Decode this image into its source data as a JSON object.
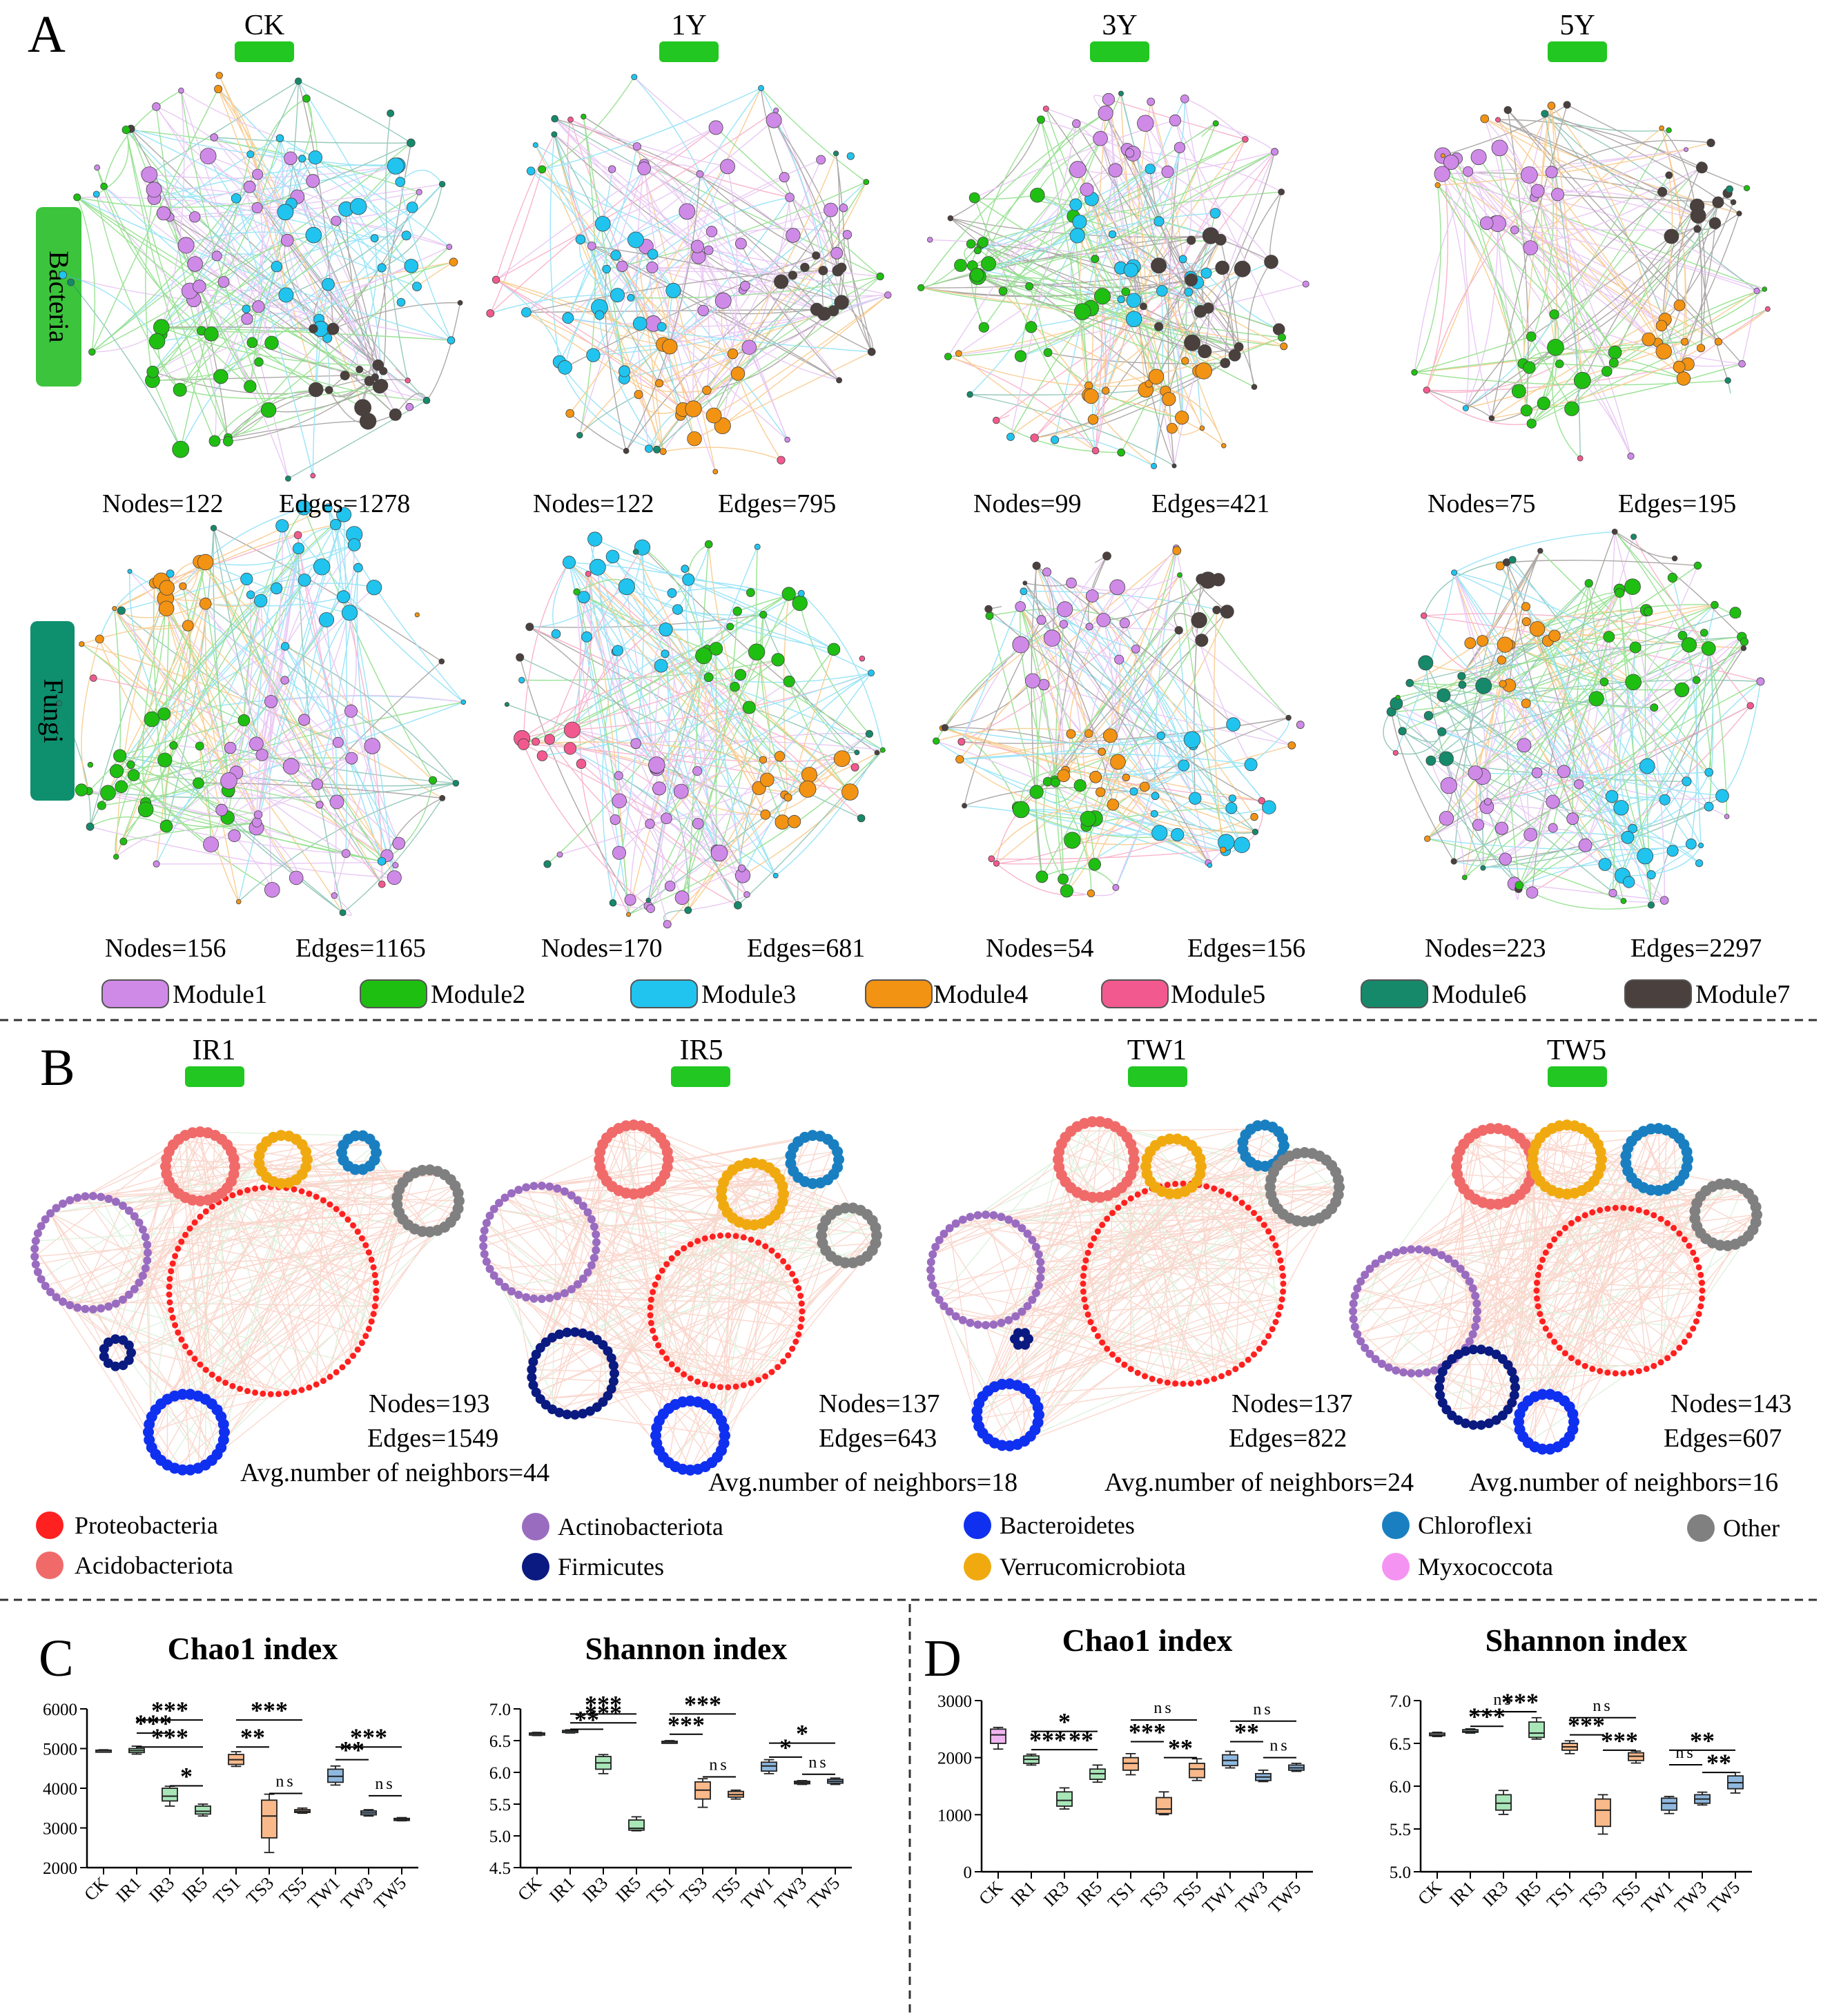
{
  "figure": {
    "panel_labels": [
      "A",
      "B",
      "C",
      "D"
    ],
    "colors": {
      "green_tab": "#22c722",
      "teal_tab": "#0e8f6e",
      "module1": "#cf8ae8",
      "module2": "#1fbf12",
      "module3": "#20c4ef",
      "module4": "#f39313",
      "module5": "#f25a8f",
      "module6": "#16896b",
      "module7": "#4a403d",
      "edge_pos": "#f2896c",
      "edge_neg": "#9ed99e",
      "box_green": "#a8e6b8",
      "box_orange": "#f9b98a",
      "box_blue": "#8fb8df",
      "box_pink": "#efb5f0",
      "box_gray": "#d6d6d6"
    }
  },
  "panel_a": {
    "columns": [
      "CK",
      "1Y",
      "3Y",
      "5Y"
    ],
    "rows": [
      "Bacteria",
      "Fungi"
    ],
    "bacteria_stats": [
      {
        "nodes": "Nodes=122",
        "edges": "Edges=1278"
      },
      {
        "nodes": "Nodes=122",
        "edges": "Edges=795"
      },
      {
        "nodes": "Nodes=99",
        "edges": "Edges=421"
      },
      {
        "nodes": "Nodes=75",
        "edges": "Edges=195"
      }
    ],
    "fungi_stats": [
      {
        "nodes": "Nodes=156",
        "edges": "Edges=1165"
      },
      {
        "nodes": "Nodes=170",
        "edges": "Edges=681"
      },
      {
        "nodes": "Nodes=54",
        "edges": "Edges=156"
      },
      {
        "nodes": "Nodes=223",
        "edges": "Edges=2297"
      }
    ],
    "legend": [
      "Module1",
      "Module2",
      "Module3",
      "Module4",
      "Module5",
      "Module6",
      "Module7"
    ]
  },
  "panel_b": {
    "columns": [
      "IR1",
      "IR5",
      "TW1",
      "TW5"
    ],
    "stats": [
      {
        "nodes": "Nodes=193",
        "edges": "Edges=1549",
        "avg": "Avg.number of neighbors=44"
      },
      {
        "nodes": "Nodes=137",
        "edges": "Edges=643",
        "avg": "Avg.number of neighbors=18"
      },
      {
        "nodes": "Nodes=137",
        "edges": "Edges=822",
        "avg": "Avg.number of neighbors=24"
      },
      {
        "nodes": "Nodes=143",
        "edges": "Edges=607",
        "avg": "Avg.number of neighbors=16"
      }
    ],
    "legend": [
      {
        "label": "Proteobacteria",
        "color": "#ff2020"
      },
      {
        "label": "Acidobacteriota",
        "color": "#f06a6a"
      },
      {
        "label": "Actinobacteriota",
        "color": "#9a6cc0"
      },
      {
        "label": "Firmicutes",
        "color": "#0a1a80"
      },
      {
        "label": "Bacteroidetes",
        "color": "#1030f0"
      },
      {
        "label": "Verrucomicrobiota",
        "color": "#f0aa10"
      },
      {
        "label": "Chloroflexi",
        "color": "#1a7fc0"
      },
      {
        "label": "Myxococcota",
        "color": "#f593f2"
      },
      {
        "label": "Other",
        "color": "#808080"
      }
    ]
  },
  "chart_data": [
    {
      "type": "box",
      "panel": "C",
      "title": "Chao1 index",
      "categories": [
        "CK",
        "IR1",
        "IR3",
        "IR5",
        "TS1",
        "TS3",
        "TS5",
        "TW1",
        "TW3",
        "TW5"
      ],
      "ylim": [
        2000,
        6000
      ],
      "yticks": [
        "2000",
        "3000",
        "4000",
        "5000",
        "6000"
      ],
      "boxes": [
        {
          "min": 4920,
          "q1": 4930,
          "median": 4945,
          "q3": 4960,
          "max": 4970
        },
        {
          "min": 4860,
          "q1": 4900,
          "median": 4950,
          "q3": 5000,
          "max": 5060
        },
        {
          "min": 3550,
          "q1": 3680,
          "median": 3800,
          "q3": 4000,
          "max": 4050
        },
        {
          "min": 3300,
          "q1": 3350,
          "median": 3420,
          "q3": 3550,
          "max": 3600
        },
        {
          "min": 4550,
          "q1": 4600,
          "median": 4720,
          "q3": 4850,
          "max": 4920
        },
        {
          "min": 2380,
          "q1": 2750,
          "median": 3300,
          "q3": 3700,
          "max": 3850
        },
        {
          "min": 3370,
          "q1": 3390,
          "median": 3420,
          "q3": 3460,
          "max": 3500
        },
        {
          "min": 4080,
          "q1": 4150,
          "median": 4300,
          "q3": 4480,
          "max": 4560
        },
        {
          "min": 3300,
          "q1": 3330,
          "median": 3380,
          "q3": 3430,
          "max": 3460
        },
        {
          "min": 3180,
          "q1": 3200,
          "median": 3220,
          "q3": 3240,
          "max": 3260
        }
      ],
      "box_colors": [
        "gray",
        "green",
        "green",
        "green",
        "orange",
        "orange",
        "orange",
        "blue",
        "blue",
        "blue"
      ],
      "significance": [
        {
          "from": 1,
          "to": 3,
          "label": "***",
          "level": 5040
        },
        {
          "from": 1,
          "to": 2,
          "label": "***",
          "level": 5390
        },
        {
          "from": 1,
          "to": 3,
          "label": "***",
          "level": 5720
        },
        {
          "from": 2,
          "to": 3,
          "label": "*",
          "level": 4060
        },
        {
          "from": 4,
          "to": 5,
          "label": "**",
          "level": 5040
        },
        {
          "from": 4,
          "to": 6,
          "label": "***",
          "level": 5720
        },
        {
          "from": 5,
          "to": 6,
          "label": "ns",
          "level": 3870
        },
        {
          "from": 7,
          "to": 8,
          "label": "**",
          "level": 4720
        },
        {
          "from": 7,
          "to": 9,
          "label": "***",
          "level": 5040
        },
        {
          "from": 8,
          "to": 9,
          "label": "ns",
          "level": 3810
        }
      ]
    },
    {
      "type": "box",
      "panel": "C",
      "title": "Shannon index",
      "categories": [
        "CK",
        "IR1",
        "IR3",
        "IR5",
        "TS1",
        "TS3",
        "TS5",
        "TW1",
        "TW3",
        "TW5"
      ],
      "ylim": [
        4.5,
        7.0
      ],
      "yticks": [
        "4.5",
        "5.0",
        "5.5",
        "6.0",
        "6.5",
        "7.0"
      ],
      "boxes": [
        {
          "min": 6.58,
          "q1": 6.59,
          "median": 6.61,
          "q3": 6.62,
          "max": 6.63
        },
        {
          "min": 6.62,
          "q1": 6.63,
          "median": 6.65,
          "q3": 6.66,
          "max": 6.67
        },
        {
          "min": 5.98,
          "q1": 6.05,
          "median": 6.15,
          "q3": 6.25,
          "max": 6.28
        },
        {
          "min": 5.08,
          "q1": 5.09,
          "median": 5.12,
          "q3": 5.25,
          "max": 5.3
        },
        {
          "min": 6.46,
          "q1": 6.47,
          "median": 6.48,
          "q3": 6.49,
          "max": 6.5
        },
        {
          "min": 5.45,
          "q1": 5.58,
          "median": 5.72,
          "q3": 5.85,
          "max": 5.9
        },
        {
          "min": 5.58,
          "q1": 5.61,
          "median": 5.65,
          "q3": 5.7,
          "max": 5.72
        },
        {
          "min": 5.98,
          "q1": 6.02,
          "median": 6.1,
          "q3": 6.16,
          "max": 6.2
        },
        {
          "min": 5.81,
          "q1": 5.82,
          "median": 5.84,
          "q3": 5.86,
          "max": 5.87
        },
        {
          "min": 5.81,
          "q1": 5.83,
          "median": 5.86,
          "q3": 5.89,
          "max": 5.91
        }
      ],
      "box_colors": [
        "gray",
        "green",
        "green",
        "green",
        "orange",
        "orange",
        "orange",
        "blue",
        "blue",
        "blue"
      ],
      "significance": [
        {
          "from": 1,
          "to": 2,
          "label": "**",
          "level": 6.68
        },
        {
          "from": 1,
          "to": 3,
          "label": "***",
          "level": 6.78
        },
        {
          "from": 1,
          "to": 3,
          "label": "***",
          "level": 6.92
        },
        {
          "from": 4,
          "to": 5,
          "label": "***",
          "level": 6.6
        },
        {
          "from": 4,
          "to": 6,
          "label": "***",
          "level": 6.92
        },
        {
          "from": 5,
          "to": 6,
          "label": "ns",
          "level": 5.93
        },
        {
          "from": 7,
          "to": 8,
          "label": "*",
          "level": 6.24
        },
        {
          "from": 7,
          "to": 9,
          "label": "*",
          "level": 6.46
        },
        {
          "from": 8,
          "to": 9,
          "label": "ns",
          "level": 5.97
        }
      ]
    },
    {
      "type": "box",
      "panel": "D",
      "title": "Chao1 index",
      "categories": [
        "CK",
        "IR1",
        "IR3",
        "IR5",
        "TS1",
        "TS3",
        "TS5",
        "TW1",
        "TW3",
        "TW5"
      ],
      "ylim": [
        0,
        3000
      ],
      "yticks": [
        "0",
        "1000",
        "2000",
        "3000"
      ],
      "boxes": [
        {
          "min": 2150,
          "q1": 2250,
          "median": 2400,
          "q3": 2500,
          "max": 2530
        },
        {
          "min": 1870,
          "q1": 1900,
          "median": 1970,
          "q3": 2030,
          "max": 2060
        },
        {
          "min": 1100,
          "q1": 1150,
          "median": 1250,
          "q3": 1400,
          "max": 1470
        },
        {
          "min": 1570,
          "q1": 1620,
          "median": 1720,
          "q3": 1800,
          "max": 1870
        },
        {
          "min": 1700,
          "q1": 1780,
          "median": 1900,
          "q3": 2000,
          "max": 2070
        },
        {
          "min": 1000,
          "q1": 1020,
          "median": 1100,
          "q3": 1300,
          "max": 1400
        },
        {
          "min": 1600,
          "q1": 1650,
          "median": 1800,
          "q3": 1900,
          "max": 1980
        },
        {
          "min": 1820,
          "q1": 1860,
          "median": 1950,
          "q3": 2050,
          "max": 2110
        },
        {
          "min": 1580,
          "q1": 1600,
          "median": 1660,
          "q3": 1720,
          "max": 1780
        },
        {
          "min": 1760,
          "q1": 1780,
          "median": 1820,
          "q3": 1870,
          "max": 1900
        }
      ],
      "box_colors": [
        "pink",
        "green",
        "green",
        "green",
        "orange",
        "orange",
        "orange",
        "blue",
        "blue",
        "blue"
      ],
      "significance": [
        {
          "from": 1,
          "to": 2,
          "label": "***",
          "level": 2140
        },
        {
          "from": 1,
          "to": 3,
          "label": "*",
          "level": 2460
        },
        {
          "from": 2,
          "to": 3,
          "label": "**",
          "level": 2140
        },
        {
          "from": 4,
          "to": 5,
          "label": "***",
          "level": 2280
        },
        {
          "from": 4,
          "to": 6,
          "label": "ns",
          "level": 2660
        },
        {
          "from": 5,
          "to": 6,
          "label": "**",
          "level": 2000
        },
        {
          "from": 7,
          "to": 8,
          "label": "**",
          "level": 2280
        },
        {
          "from": 7,
          "to": 9,
          "label": "ns",
          "level": 2640
        },
        {
          "from": 8,
          "to": 9,
          "label": "ns",
          "level": 2000
        }
      ]
    },
    {
      "type": "box",
      "panel": "D",
      "title": "Shannon index",
      "categories": [
        "CK",
        "IR1",
        "IR3",
        "IR5",
        "TS1",
        "TS3",
        "TS5",
        "TW1",
        "TW3",
        "TW5"
      ],
      "ylim": [
        5.0,
        7.0
      ],
      "yticks": [
        "5.0",
        "5.5",
        "6.0",
        "6.5",
        "7.0"
      ],
      "boxes": [
        {
          "min": 6.58,
          "q1": 6.59,
          "median": 6.6,
          "q3": 6.62,
          "max": 6.63
        },
        {
          "min": 6.62,
          "q1": 6.63,
          "median": 6.64,
          "q3": 6.66,
          "max": 6.67
        },
        {
          "min": 5.67,
          "q1": 5.72,
          "median": 5.8,
          "q3": 5.9,
          "max": 5.95
        },
        {
          "min": 6.55,
          "q1": 6.57,
          "median": 6.62,
          "q3": 6.75,
          "max": 6.8
        },
        {
          "min": 6.38,
          "q1": 6.42,
          "median": 6.46,
          "q3": 6.5,
          "max": 6.53
        },
        {
          "min": 5.44,
          "q1": 5.53,
          "median": 5.72,
          "q3": 5.85,
          "max": 5.9
        },
        {
          "min": 6.27,
          "q1": 6.3,
          "median": 6.35,
          "q3": 6.39,
          "max": 6.41
        },
        {
          "min": 5.68,
          "q1": 5.72,
          "median": 5.8,
          "q3": 5.86,
          "max": 5.88
        },
        {
          "min": 5.78,
          "q1": 5.8,
          "median": 5.85,
          "q3": 5.9,
          "max": 5.93
        },
        {
          "min": 5.92,
          "q1": 5.97,
          "median": 6.04,
          "q3": 6.12,
          "max": 6.16
        }
      ],
      "box_colors": [
        "gray",
        "green",
        "green",
        "green",
        "orange",
        "orange",
        "orange",
        "blue",
        "blue",
        "blue"
      ],
      "significance": [
        {
          "from": 1,
          "to": 2,
          "label": "***",
          "level": 6.7
        },
        {
          "from": 1,
          "to": 3,
          "label": "ns",
          "level": 6.87
        },
        {
          "from": 2,
          "to": 3,
          "label": "***",
          "level": 6.87
        },
        {
          "from": 4,
          "to": 5,
          "label": "***",
          "level": 6.6
        },
        {
          "from": 4,
          "to": 6,
          "label": "ns",
          "level": 6.8
        },
        {
          "from": 5,
          "to": 6,
          "label": "***",
          "level": 6.42
        },
        {
          "from": 7,
          "to": 8,
          "label": "ns",
          "level": 6.25
        },
        {
          "from": 7,
          "to": 9,
          "label": "**",
          "level": 6.42
        },
        {
          "from": 8,
          "to": 9,
          "label": "**",
          "level": 6.16
        }
      ]
    }
  ]
}
